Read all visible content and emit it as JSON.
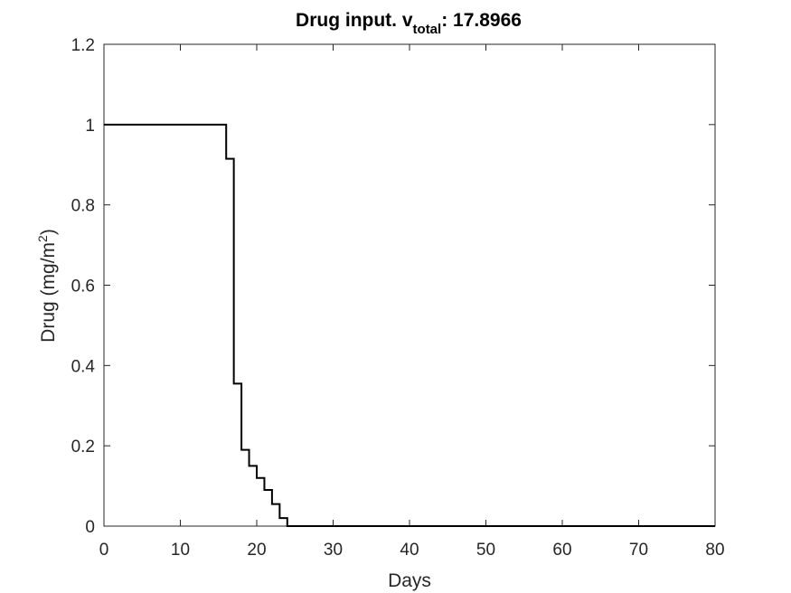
{
  "chart_data": {
    "type": "line",
    "title": {
      "prefix": "Drug input. v",
      "subscript": "total",
      "suffix": ": 17.8966"
    },
    "xlabel": "Days",
    "ylabel": {
      "main": "Drug (mg/m",
      "superscript": "2",
      "close": ")"
    },
    "xlim": [
      0,
      80
    ],
    "ylim": [
      0,
      1.2
    ],
    "xticks": [
      0,
      10,
      20,
      30,
      40,
      50,
      60,
      70,
      80
    ],
    "yticks": [
      0,
      0.2,
      0.4,
      0.6,
      0.8,
      1,
      1.2
    ],
    "xtick_labels": [
      "0",
      "10",
      "20",
      "30",
      "40",
      "50",
      "60",
      "70",
      "80"
    ],
    "ytick_labels": [
      "0",
      "0.2",
      "0.4",
      "0.6",
      "0.8",
      "1",
      "1.2"
    ],
    "grid": false,
    "line_color": "#000000",
    "series": [
      {
        "step": "post",
        "x": [
          0,
          16,
          17,
          18,
          19,
          20,
          21,
          22,
          23,
          24,
          80
        ],
        "y": [
          1.0,
          0.915,
          0.355,
          0.19,
          0.15,
          0.12,
          0.09,
          0.055,
          0.02,
          0.0,
          0.0
        ]
      }
    ]
  }
}
